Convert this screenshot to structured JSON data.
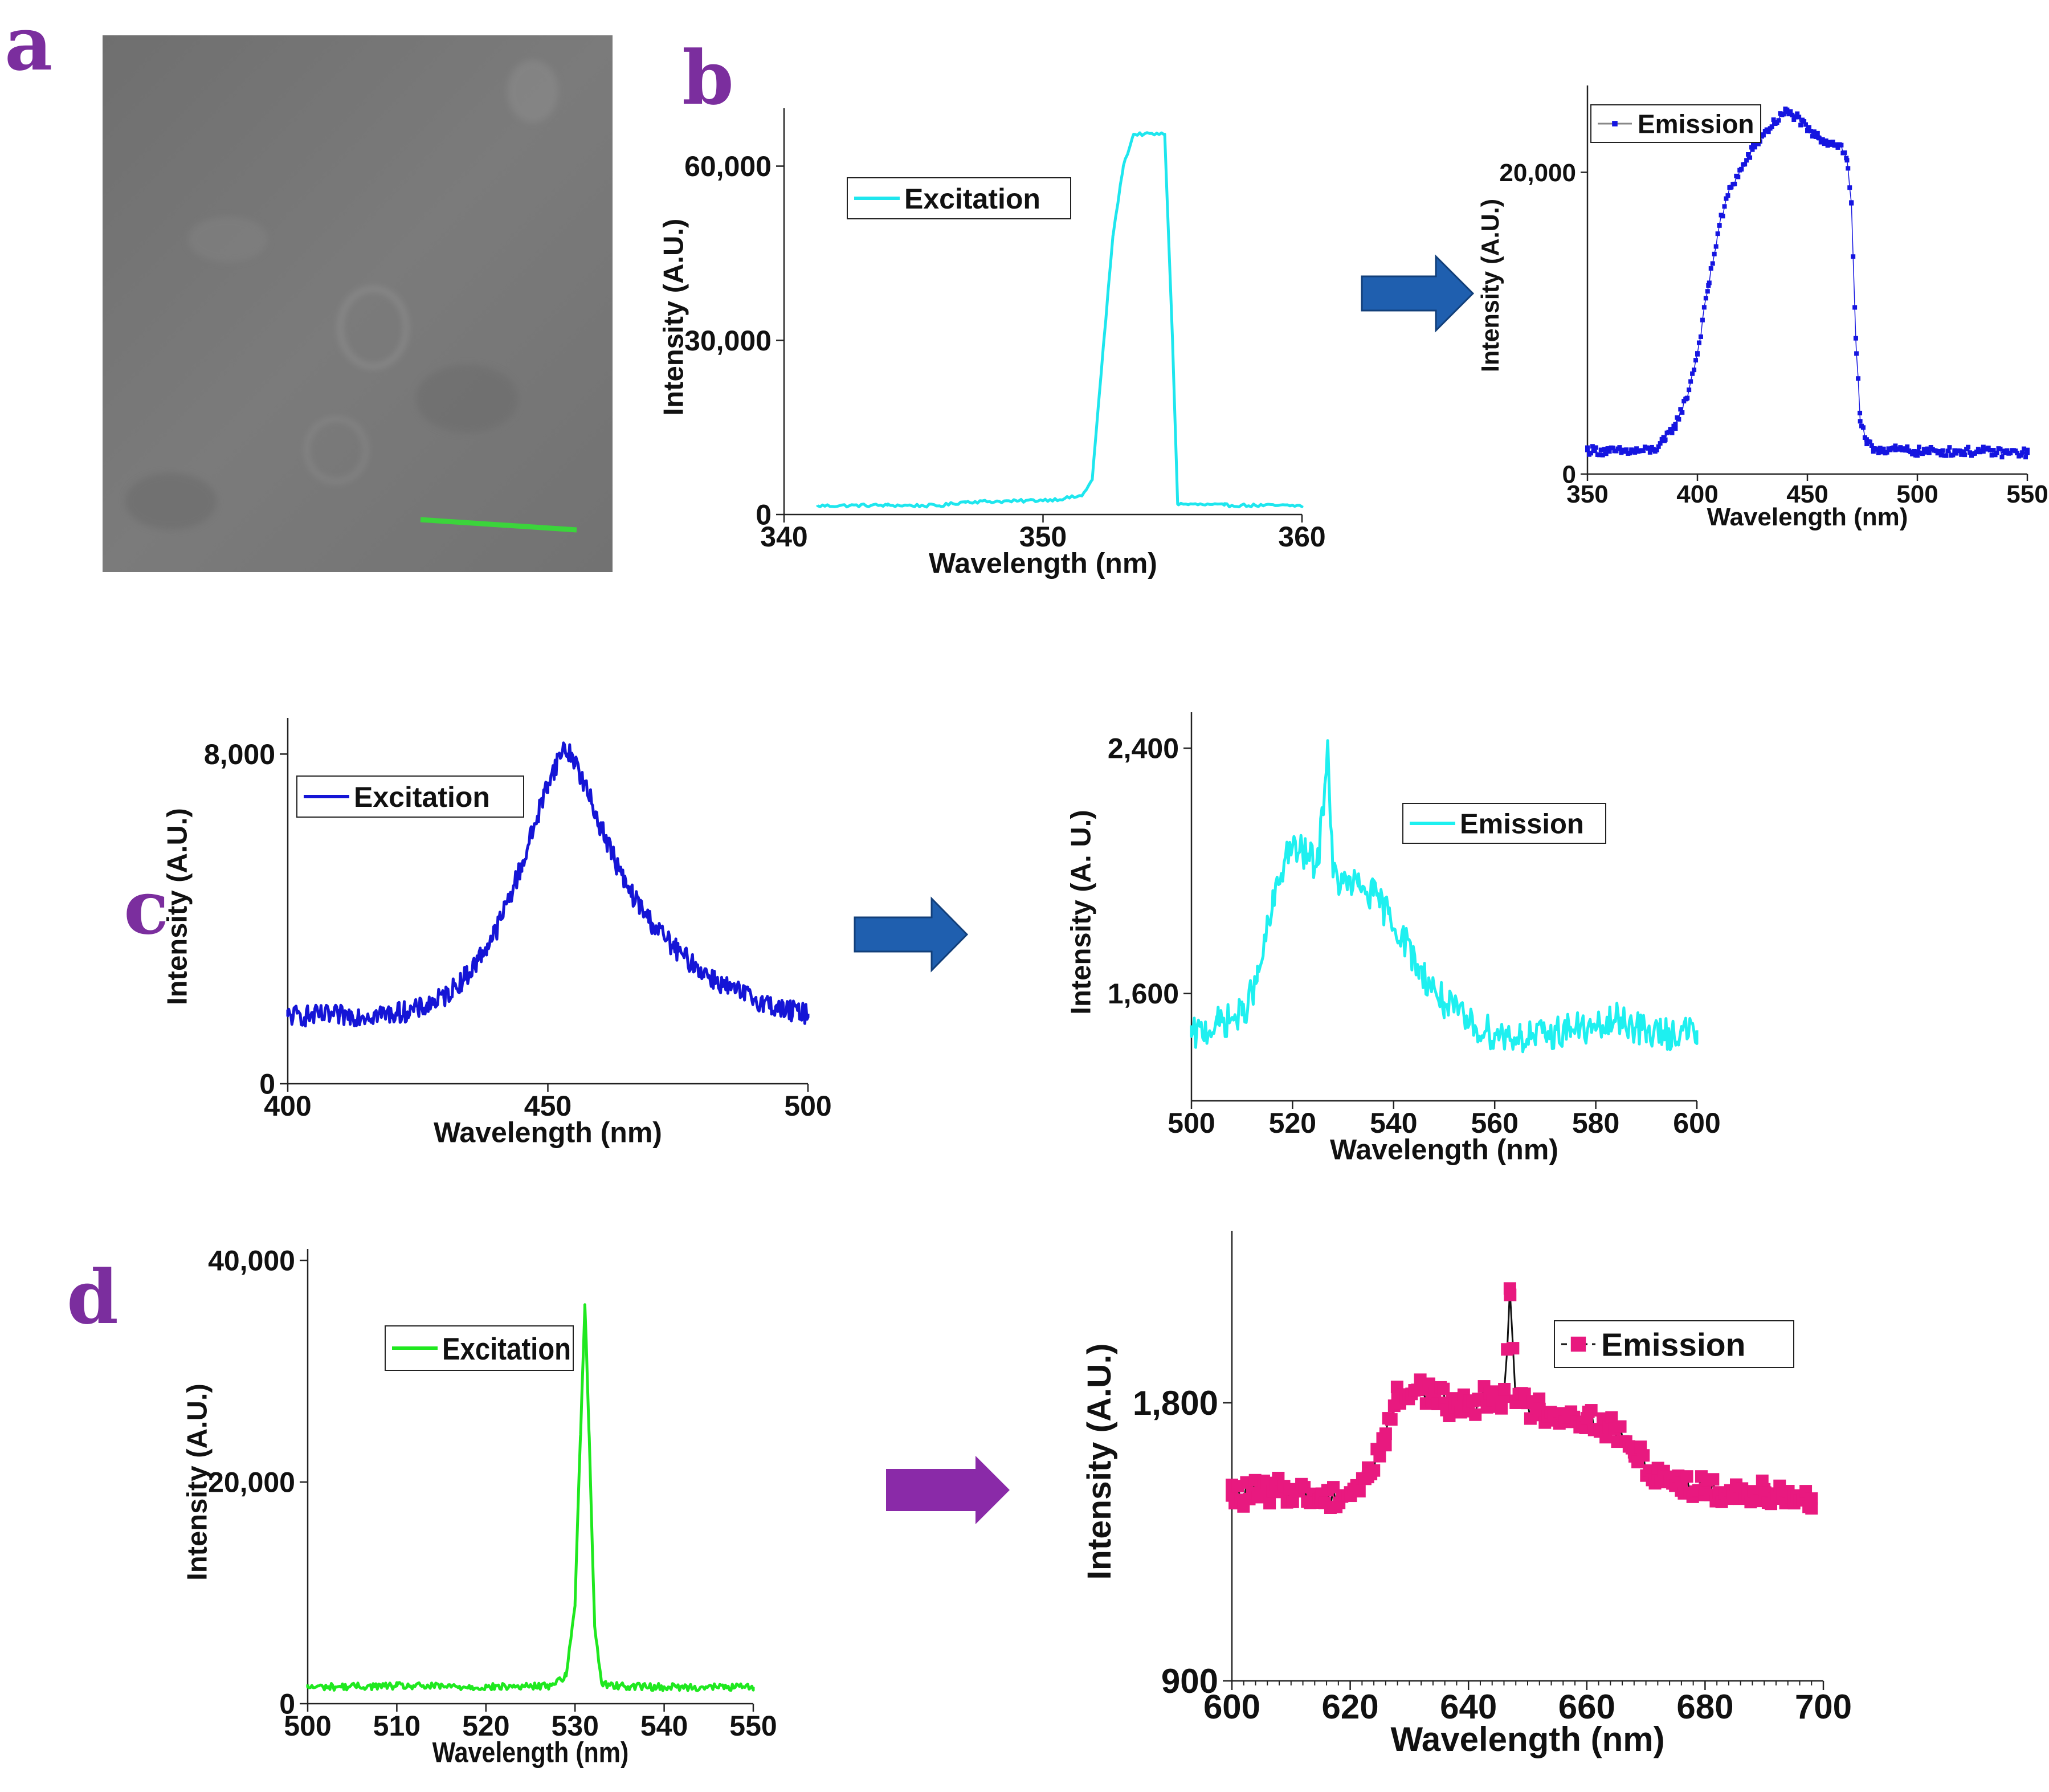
{
  "figure": {
    "panel_letters": {
      "a": "a",
      "b": "b",
      "c": "c",
      "d": "d"
    },
    "arrow_colors": {
      "b": "#1F5FAF",
      "c": "#1F5FAF",
      "d": "#8A2AA8"
    },
    "micrograph_scale_bar_color": "#3BD43B",
    "micrograph_background": "#7a7a7a"
  },
  "chart_data": [
    {
      "id": "b_exc",
      "type": "line",
      "legend": "Excitation",
      "color": "#1EE6EE",
      "marker": "none",
      "xlabel": "Wavelength (nm)",
      "ylabel": "Intensity (A.U.)",
      "xlim": [
        340,
        360
      ],
      "ylim": [
        0,
        68000
      ],
      "xticks": [
        340,
        350,
        360
      ],
      "xtick_labels": [
        "340",
        "350",
        "360"
      ],
      "yticks": [
        0,
        30000,
        60000
      ],
      "ytick_labels": [
        "0",
        "30,000",
        "60,000"
      ],
      "x": [
        341.3,
        344,
        346,
        347,
        349,
        350.5,
        351.5,
        351.9,
        352.2,
        352.7,
        353.1,
        353.5,
        354.7,
        355,
        355.2,
        357,
        360
      ],
      "y": [
        1500,
        1600,
        1500,
        2200,
        2300,
        2600,
        3200,
        6000,
        22000,
        48000,
        60000,
        65500,
        65500,
        30000,
        1800,
        1600,
        1500
      ]
    },
    {
      "id": "b_em",
      "type": "scatter_line",
      "legend": "Emission",
      "color": "#1515E0",
      "marker": "square",
      "xlabel": "Wavelength (nm)",
      "ylabel": "Intensity (A.U.)",
      "xlim": [
        350,
        550
      ],
      "ylim": [
        0,
        25000
      ],
      "xticks": [
        350,
        400,
        450,
        500,
        550
      ],
      "xtick_labels": [
        "350",
        "400",
        "450",
        "500",
        "550"
      ],
      "yticks": [
        0,
        20000
      ],
      "ytick_labels": [
        "0",
        "20,000"
      ],
      "x": [
        350,
        360,
        370,
        380,
        385,
        390,
        395,
        400,
        405,
        410,
        415,
        420,
        425,
        430,
        435,
        440,
        445,
        450,
        455,
        460,
        465,
        468,
        470,
        472,
        474,
        477,
        480,
        490,
        500,
        510,
        520,
        530,
        540,
        550
      ],
      "y": [
        1600,
        1500,
        1500,
        1600,
        2200,
        3300,
        5000,
        8000,
        12500,
        16500,
        19000,
        20200,
        21500,
        22500,
        23300,
        24000,
        23700,
        22800,
        22300,
        22000,
        21800,
        20800,
        18000,
        9000,
        3500,
        2000,
        1700,
        1600,
        1500,
        1500,
        1500,
        1500,
        1400,
        1400
      ]
    },
    {
      "id": "c_exc",
      "type": "line",
      "legend": "Excitation",
      "color": "#1515D6",
      "marker": "none",
      "xlabel": "Wavelength (nm)",
      "ylabel": "Intensity (A.U.)",
      "xlim": [
        400,
        500
      ],
      "ylim": [
        0,
        8600
      ],
      "xticks": [
        400,
        450,
        500
      ],
      "xtick_labels": [
        "400",
        "450",
        "500"
      ],
      "yticks": [
        0,
        8000
      ],
      "ytick_labels": [
        "0",
        "8,000"
      ],
      "x": [
        400,
        410,
        420,
        425,
        430,
        435,
        440,
        445,
        450,
        453,
        455,
        460,
        465,
        470,
        475,
        480,
        485,
        490,
        495,
        500
      ],
      "y": [
        1650,
        1650,
        1700,
        1800,
        2100,
        2700,
        3700,
        5300,
        7300,
        8150,
        7900,
        6300,
        4800,
        3900,
        3200,
        2700,
        2300,
        2050,
        1800,
        1700
      ]
    },
    {
      "id": "c_em",
      "type": "line",
      "legend": "Emission",
      "color": "#1EF0F0",
      "marker": "none",
      "xlabel": "Wavelength (nm)",
      "ylabel": "Intensity (A. U.)",
      "xlim": [
        500,
        600
      ],
      "ylim": [
        1250,
        2480
      ],
      "xticks": [
        500,
        520,
        540,
        560,
        580,
        600
      ],
      "xtick_labels": [
        "500",
        "520",
        "540",
        "560",
        "580",
        "600"
      ],
      "yticks": [
        1600,
        2400
      ],
      "ytick_labels": [
        "1,600",
        "2,400"
      ],
      "x": [
        500,
        505,
        510,
        513,
        516,
        519,
        522,
        525,
        527,
        528,
        530,
        533,
        536,
        539,
        542,
        545,
        550,
        555,
        560,
        565,
        570,
        575,
        580,
        585,
        590,
        595,
        600
      ],
      "y": [
        1460,
        1500,
        1530,
        1640,
        1880,
        2070,
        2060,
        2020,
        2410,
        1980,
        1960,
        1950,
        1920,
        1860,
        1780,
        1680,
        1570,
        1500,
        1470,
        1460,
        1460,
        1490,
        1480,
        1520,
        1470,
        1470,
        1480
      ]
    },
    {
      "id": "d_exc",
      "type": "line",
      "legend": "Excitation",
      "color": "#1FE81F",
      "marker": "none",
      "xlabel": "Wavelength (nm)",
      "ylabel": "Intensity (A.U.)",
      "xlim": [
        500,
        550
      ],
      "ylim": [
        0,
        40000
      ],
      "xticks": [
        500,
        510,
        520,
        530,
        540,
        550
      ],
      "xtick_labels": [
        "500",
        "510",
        "520",
        "530",
        "540",
        "550"
      ],
      "yticks": [
        0,
        20000,
        40000
      ],
      "ytick_labels": [
        "0",
        "20,000",
        "40,000"
      ],
      "x": [
        500,
        510,
        520,
        527,
        529,
        530,
        530.6,
        531.1,
        531.6,
        532.2,
        533,
        535,
        540,
        550
      ],
      "y": [
        1500,
        1600,
        1500,
        1600,
        2500,
        9000,
        24000,
        36000,
        24000,
        7000,
        1800,
        1600,
        1500,
        1500
      ]
    },
    {
      "id": "d_em",
      "type": "scatter_line",
      "legend": "Emission",
      "color": "#E8197F",
      "line_color": "#111111",
      "marker": "square",
      "xlabel": "Wavelength (nm)",
      "ylabel": "Intensity (A.U.)",
      "xlim": [
        600,
        700
      ],
      "ylim": [
        900,
        2320
      ],
      "xticks": [
        600,
        620,
        640,
        660,
        680,
        700
      ],
      "xtick_labels": [
        "600",
        "620",
        "640",
        "660",
        "680",
        "700"
      ],
      "yticks": [
        900,
        1800
      ],
      "ytick_labels": [
        "900",
        "1,800"
      ],
      "x": [
        600,
        605,
        610,
        615,
        620,
        623,
        626,
        628,
        632,
        636,
        640,
        644,
        646,
        647,
        648,
        652,
        656,
        660,
        664,
        668,
        672,
        676,
        680,
        685,
        690,
        695,
        698
      ],
      "y": [
        1500,
        1510,
        1520,
        1490,
        1510,
        1560,
        1700,
        1820,
        1850,
        1800,
        1790,
        1830,
        1820,
        2170,
        1800,
        1780,
        1760,
        1750,
        1720,
        1640,
        1570,
        1540,
        1520,
        1510,
        1520,
        1500,
        1490
      ]
    }
  ]
}
